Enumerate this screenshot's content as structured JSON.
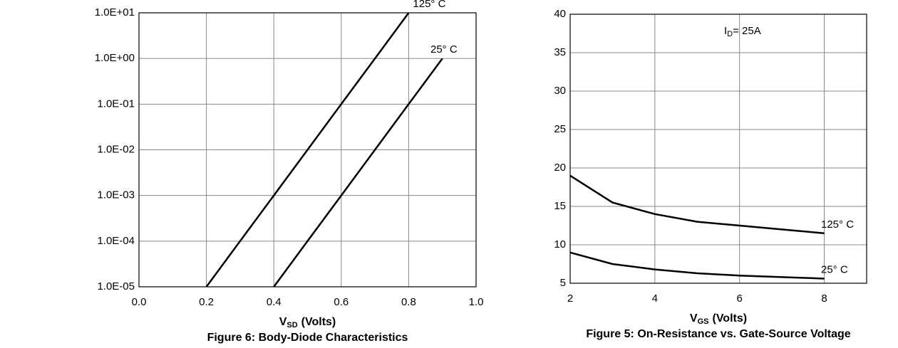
{
  "chart_data": [
    {
      "type": "line",
      "title": "Figure 6: Body-Diode Characteristics",
      "x_label": {
        "symbol": "V",
        "subscript": "SD",
        "unit": "(Volts)"
      },
      "x": [
        0.2,
        0.3,
        0.4,
        0.5,
        0.6,
        0.7,
        0.8,
        0.9
      ],
      "series": [
        {
          "name": "125° C",
          "color": "#000000",
          "values": [
            1e-05,
            0.0001,
            0.001,
            0.01,
            0.1,
            1,
            10,
            null
          ]
        },
        {
          "name": "25° C",
          "color": "#000000",
          "values": [
            null,
            null,
            1e-05,
            0.0001,
            0.001,
            0.01,
            0.1,
            1
          ]
        }
      ],
      "xlim": [
        0,
        1
      ],
      "xticks": [
        {
          "value": 0,
          "label": "0.0"
        },
        {
          "value": 0.2,
          "label": "0.2"
        },
        {
          "value": 0.4,
          "label": "0.4"
        },
        {
          "value": 0.6,
          "label": "0.6"
        },
        {
          "value": 0.8,
          "label": "0.8"
        },
        {
          "value": 1,
          "label": "1.0"
        }
      ],
      "ylim": [
        1e-05,
        10
      ],
      "log_y": true,
      "yticks": [
        {
          "value": 1e-05,
          "label": "1.0E-05"
        },
        {
          "value": 0.0001,
          "label": "1.0E-04"
        },
        {
          "value": 0.001,
          "label": "1.0E-03"
        },
        {
          "value": 0.01,
          "label": "1.0E-02"
        },
        {
          "value": 0.1,
          "label": "1.0E-01"
        },
        {
          "value": 1,
          "label": "1.0E+00"
        },
        {
          "value": 10,
          "label": "1.0E+01"
        }
      ],
      "grid": true
    },
    {
      "type": "line",
      "title": "Figure 5: On-Resistance vs. Gate-Source Voltage",
      "x_label": {
        "symbol": "V",
        "subscript": "GS",
        "unit": "(Volts)"
      },
      "annotation": {
        "symbol": "I",
        "subscript": "D",
        "text": "= 25A"
      },
      "x": [
        2,
        3,
        4,
        5,
        6,
        7,
        8
      ],
      "series": [
        {
          "name": "125° C",
          "color": "#000000",
          "values": [
            19,
            15.5,
            14,
            13,
            12.5,
            12,
            11.5
          ]
        },
        {
          "name": "25° C",
          "color": "#000000",
          "values": [
            9,
            7.5,
            6.8,
            6.3,
            6,
            5.8,
            5.6
          ]
        }
      ],
      "xlim": [
        2,
        9
      ],
      "xticks": [
        2,
        4,
        6,
        8
      ],
      "ylim": [
        5,
        40
      ],
      "yticks": [
        5,
        10,
        15,
        20,
        25,
        30,
        35,
        40
      ],
      "grid": true
    }
  ]
}
